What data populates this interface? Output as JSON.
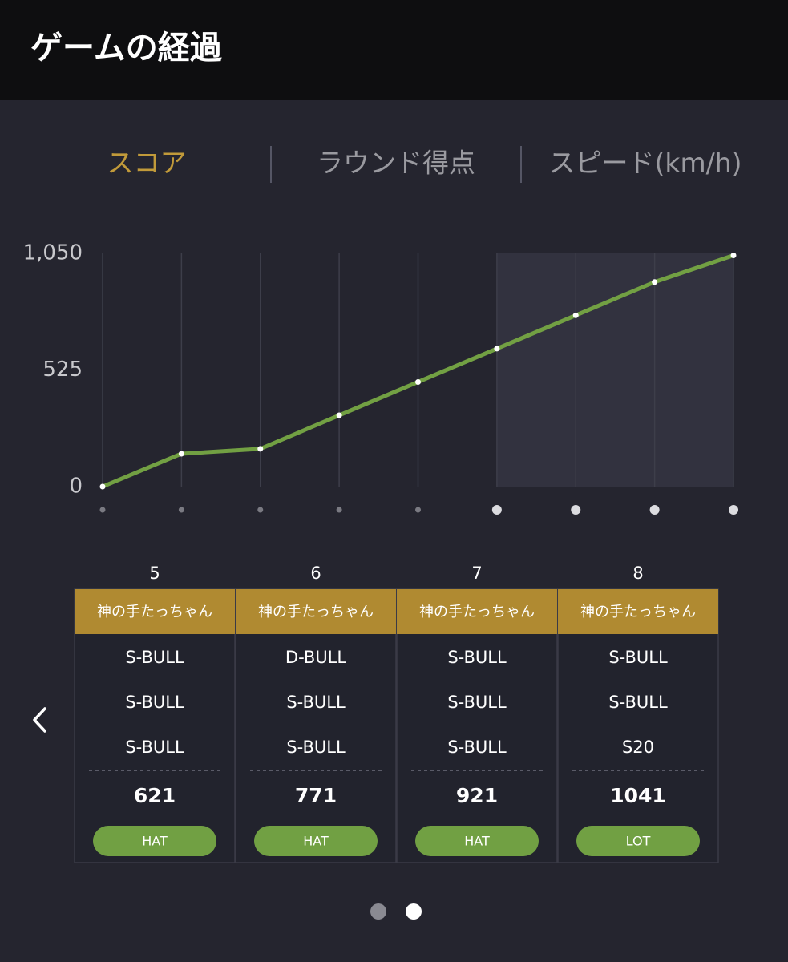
{
  "header": {
    "title": "ゲームの経過"
  },
  "tabs": [
    "スコア",
    "ラウンド得点",
    "スピード(km/h)"
  ],
  "chart_data": {
    "type": "line",
    "categories": [
      null,
      null,
      null,
      null,
      null,
      null,
      null,
      null,
      null
    ],
    "series": [
      {
        "name": null,
        "color": "#72a043",
        "values": [
          0,
          148,
          170,
          321,
          471,
          621,
          771,
          921,
          1041
        ]
      }
    ],
    "ylim": [
      0,
      1050
    ],
    "yticks": [
      0,
      525,
      {
        "value": 1050,
        "label": "1,050"
      }
    ],
    "grid": true
  },
  "rounds": [
    {
      "round": 5,
      "player": "神の手たっちゃん",
      "throws": [
        "S-BULL",
        "S-BULL",
        "S-BULL"
      ],
      "score": 621,
      "award": "HAT"
    },
    {
      "round": 6,
      "player": "神の手たっちゃん",
      "throws": [
        "D-BULL",
        "S-BULL",
        "S-BULL"
      ],
      "score": 771,
      "award": "HAT"
    },
    {
      "round": 7,
      "player": "神の手たっちゃん",
      "throws": [
        "S-BULL",
        "S-BULL",
        "S-BULL"
      ],
      "score": 921,
      "award": "HAT"
    },
    {
      "round": 8,
      "player": "神の手たっちゃん",
      "throws": [
        "S-BULL",
        "S-BULL",
        "S20"
      ],
      "score": 1041,
      "award": "LOT"
    }
  ]
}
